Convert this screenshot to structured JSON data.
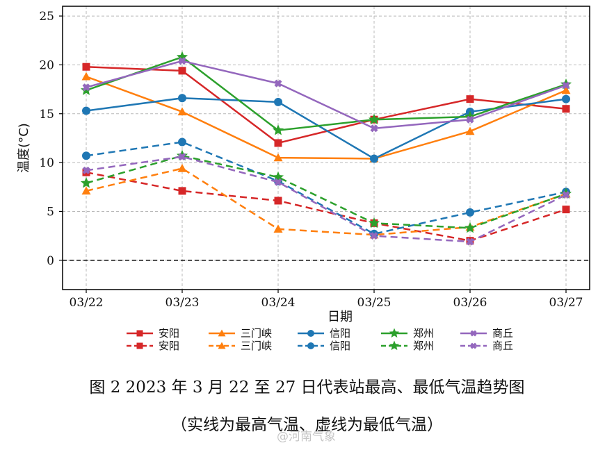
{
  "chart_data": {
    "type": "line",
    "ylabel": "温度(°C)",
    "xlabel": "日期",
    "categories": [
      "03/22",
      "03/23",
      "03/24",
      "03/25",
      "03/26",
      "03/27"
    ],
    "ylim": [
      -3,
      26
    ],
    "yticks": [
      0,
      5,
      10,
      15,
      20,
      25
    ],
    "grid": true,
    "zero_line": true,
    "legend_position": "bottom",
    "series": [
      {
        "name": "安阳",
        "kind": "max",
        "color": "#d62728",
        "marker": "square",
        "dash": "solid",
        "values": [
          19.8,
          19.4,
          12.0,
          14.4,
          16.5,
          15.5
        ]
      },
      {
        "name": "三门峡",
        "kind": "max",
        "color": "#ff7f0e",
        "marker": "triangle",
        "dash": "solid",
        "values": [
          18.8,
          15.2,
          10.5,
          10.4,
          13.2,
          17.4
        ]
      },
      {
        "name": "信阳",
        "kind": "max",
        "color": "#1f77b4",
        "marker": "circle",
        "dash": "solid",
        "values": [
          15.3,
          16.6,
          16.2,
          10.4,
          15.2,
          16.5
        ]
      },
      {
        "name": "郑州",
        "kind": "max",
        "color": "#2ca02c",
        "marker": "star",
        "dash": "solid",
        "values": [
          17.4,
          20.8,
          13.3,
          14.4,
          14.7,
          18.0
        ]
      },
      {
        "name": "商丘",
        "kind": "max",
        "color": "#9467bd",
        "marker": "x",
        "dash": "solid",
        "values": [
          17.7,
          20.4,
          18.1,
          13.5,
          14.4,
          17.9
        ]
      },
      {
        "name": "安阳",
        "kind": "min",
        "color": "#d62728",
        "marker": "square",
        "dash": "dashed",
        "values": [
          9.0,
          7.1,
          6.1,
          3.8,
          2.0,
          5.2
        ]
      },
      {
        "name": "三门峡",
        "kind": "min",
        "color": "#ff7f0e",
        "marker": "triangle",
        "dash": "dashed",
        "values": [
          7.1,
          9.4,
          3.2,
          2.6,
          3.4,
          6.8
        ]
      },
      {
        "name": "信阳",
        "kind": "min",
        "color": "#1f77b4",
        "marker": "circle",
        "dash": "dashed",
        "values": [
          10.7,
          12.1,
          8.1,
          2.7,
          4.9,
          7.0
        ]
      },
      {
        "name": "郑州",
        "kind": "min",
        "color": "#2ca02c",
        "marker": "star",
        "dash": "dashed",
        "values": [
          7.9,
          10.7,
          8.5,
          3.8,
          3.3,
          6.8
        ]
      },
      {
        "name": "商丘",
        "kind": "min",
        "color": "#9467bd",
        "marker": "x",
        "dash": "dashed",
        "values": [
          9.2,
          10.6,
          8.0,
          2.5,
          1.9,
          6.7
        ]
      }
    ]
  },
  "caption": {
    "line1": "图 2  2023 年 3 月 22 至 27 日代表站最高、最低气温趋势图",
    "line2": "（实线为最高气温、虚线为最低气温）"
  },
  "watermark": "@河南气象"
}
